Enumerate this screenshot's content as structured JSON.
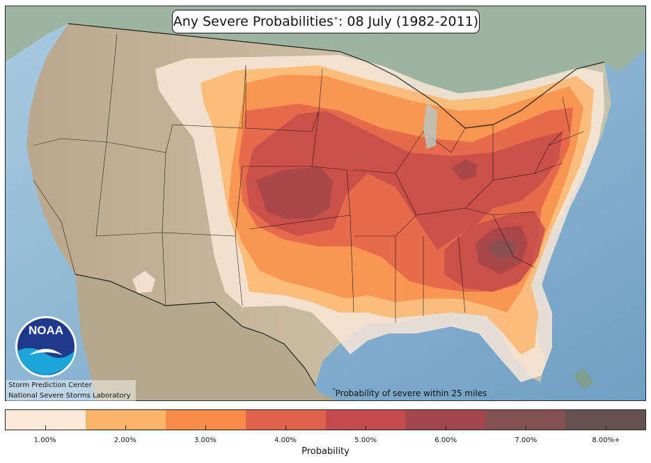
{
  "title": {
    "main": "Any Severe Probabilities",
    "marker": "*",
    "suffix": ": 08 July (1982-2011)"
  },
  "footnote": {
    "marker": "*",
    "text": "Probability of severe within 25 miles"
  },
  "credits": {
    "line1": "Storm Prediction Center",
    "line2": "National Severe Storms Laboratory"
  },
  "logo": {
    "text": "NOAA"
  },
  "colorbar": {
    "axis_label": "Probability",
    "bins": [
      {
        "label": "1.00%",
        "color": "#fde9d8"
      },
      {
        "label": "2.00%",
        "color": "#fbb46a"
      },
      {
        "label": "3.00%",
        "color": "#f98d4a"
      },
      {
        "label": "4.00%",
        "color": "#e0624b"
      },
      {
        "label": "5.00%",
        "color": "#c44a4b"
      },
      {
        "label": "6.00%",
        "color": "#a2464b"
      },
      {
        "label": "7.00%",
        "color": "#825050"
      },
      {
        "label": "8.00%+",
        "color": "#675252"
      }
    ]
  },
  "colors": {
    "ocean": "#8fbbd6",
    "land": "#bfb39a",
    "canada": "#9fb5a5",
    "mexico": "#b7ad94",
    "boundary": "#111111"
  }
}
